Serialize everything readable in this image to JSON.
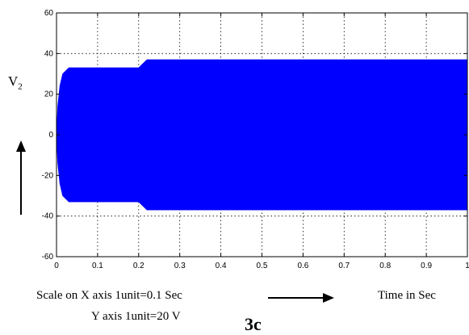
{
  "chart_data": {
    "type": "line",
    "title": "",
    "ylabel": {
      "main": "V",
      "sub": "2"
    },
    "xlim": [
      0,
      1
    ],
    "ylim": [
      -60,
      60
    ],
    "xticks": [
      0,
      0.1,
      0.2,
      0.3,
      0.4,
      0.5,
      0.6,
      0.7,
      0.8,
      0.9,
      1
    ],
    "xtick_labels": [
      "0",
      "0.1",
      "0.2",
      "0.3",
      "0.4",
      "0.5",
      "0.6",
      "0.7",
      "0.8",
      "0.9",
      "1"
    ],
    "yticks": [
      -60,
      -40,
      -20,
      0,
      20,
      40,
      60
    ],
    "ytick_labels": [
      "-60",
      "-40",
      "-20",
      "0",
      "20",
      "40",
      "60"
    ],
    "grid": true,
    "series": [
      {
        "color": "#0000ff",
        "envelope": {
          "x": [
            0,
            0.003,
            0.008,
            0.015,
            0.03,
            0.2,
            0.22,
            1.0
          ],
          "upper": [
            0,
            14,
            24,
            30,
            33,
            33,
            37,
            37
          ],
          "lower": [
            0,
            -14,
            -24,
            -30,
            -33,
            -33,
            -37,
            -37
          ]
        }
      }
    ]
  },
  "captions": {
    "scale_x": "Scale on X axis 1unit=0.1 Sec",
    "scale_y": "Y axis 1unit=20 V",
    "time_label": "Time in Sec",
    "figure_label": "3c"
  },
  "colors": {
    "signal": "#0000ff",
    "axis": "#000000",
    "grid": "#000000"
  }
}
